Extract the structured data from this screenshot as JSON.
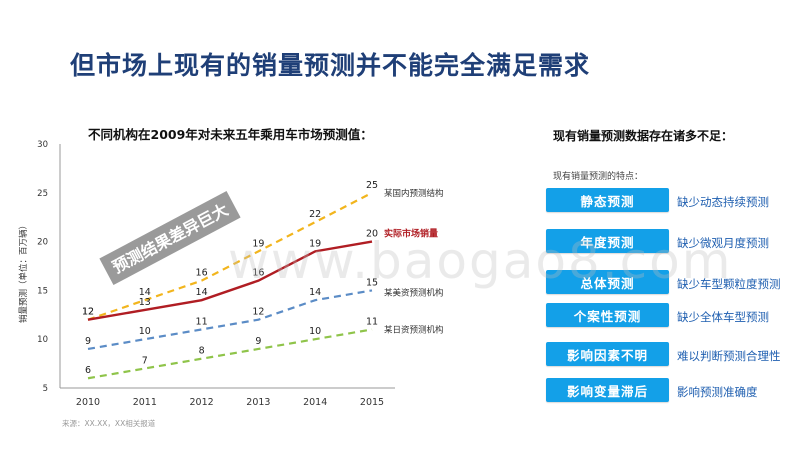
{
  "page_title": "但市场上现有的销量预测并不能完全满足需求",
  "right_panel": {
    "title": "现有销量预测数据存在诸多不足：",
    "subhead": "现有销量预测的特点：",
    "items": [
      {
        "label": "静态预测",
        "note": "缺少动态持续预测"
      },
      {
        "label": "年度预测",
        "note": "缺少微观月度预测"
      },
      {
        "label": "总体预测",
        "note": "缺少车型颗粒度预测"
      },
      {
        "label": "个案性预测",
        "note": "缺少全体车型预测"
      },
      {
        "label": "影响因素不明",
        "note": "难以判断预测合理性"
      },
      {
        "label": "影响变量滞后",
        "note": "影响预测准确度"
      }
    ]
  },
  "watermark": "www.baogao8.com",
  "colors": {
    "title": "#1f3f77",
    "button": "#13a0e8",
    "note": "#1f5fb0"
  },
  "chart_data": {
    "type": "line",
    "title": "不同机构在2009年对未来五年乘用车市场预测值：",
    "ylabel": "销量预测（单位：百万辆）",
    "xlabel": "",
    "categories": [
      "2010",
      "2011",
      "2012",
      "2013",
      "2014",
      "2015"
    ],
    "ylim": [
      5,
      30
    ],
    "yticks": [
      5,
      10,
      15,
      20,
      25,
      30
    ],
    "grid": false,
    "series": [
      {
        "name": "某国内预测结构",
        "values": [
          12,
          14,
          16,
          19,
          22,
          25
        ],
        "color": "#f2b51d",
        "dash": true
      },
      {
        "name": "实际市场销量",
        "values": [
          12,
          13,
          14,
          16,
          19,
          20
        ],
        "color": "#b01d23",
        "dash": false
      },
      {
        "name": "某美资预测机构",
        "values": [
          9,
          10,
          11,
          12,
          14,
          15
        ],
        "color": "#5b8cc6",
        "dash": true
      },
      {
        "name": "某日资预测机构",
        "values": [
          6,
          7,
          8,
          9,
          10,
          11
        ],
        "color": "#8fc44a",
        "dash": true
      }
    ],
    "annotation": "预测结果差异巨大",
    "source": "来源：XX.XX，XX相关报道"
  }
}
